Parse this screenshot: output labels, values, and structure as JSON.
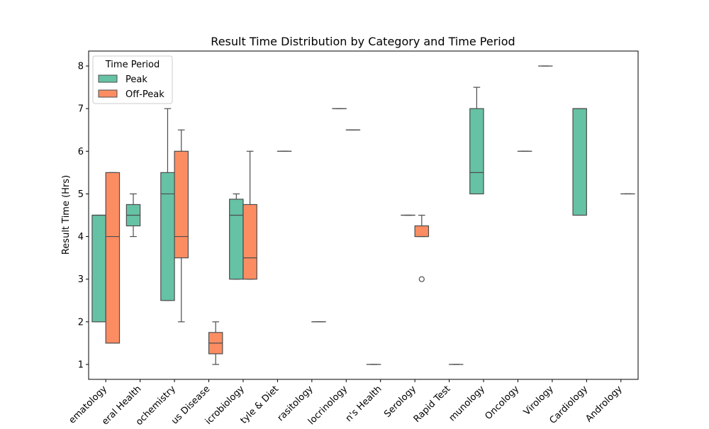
{
  "chart_data": {
    "type": "box",
    "title": "Result Time Distribution by Category and Time Period",
    "xlabel": "",
    "ylabel": "Result Time (Hrs)",
    "ylim": [
      0.65,
      8.35
    ],
    "yticks": [
      1,
      2,
      3,
      4,
      5,
      6,
      7,
      8
    ],
    "grid": false,
    "legend": {
      "title": "Time Period",
      "placement": "top-left"
    },
    "categories": [
      "Hematology",
      "General Health",
      "Biochemistry",
      "Infectious Disease",
      "Microbiology",
      "Lifestyle & Diet",
      "Parasitology",
      "Endocrinology",
      "Women's Health",
      "Serology",
      "Rapid Test",
      "Immunology",
      "Oncology",
      "Virology",
      "Cardiology",
      "Andrology"
    ],
    "category_labels_visible": [
      "ematology",
      "eral Health",
      "ochemistry",
      "us Disease",
      "icrobiology",
      "tyle & Diet",
      "rasitology",
      "locrinology",
      "n's Health",
      "Serology",
      "Rapid Test",
      "munology",
      "Oncology",
      "Virology",
      "Cardiology",
      "Andrology"
    ],
    "series": [
      {
        "name": "Peak",
        "color": "#66c2a5",
        "boxes": [
          {
            "category": "Hematology",
            "q1": 2.0,
            "median": 4.5,
            "q3": 4.5,
            "whisker_low": 2.0,
            "whisker_high": 4.5
          },
          {
            "category": "General Health",
            "q1": 4.25,
            "median": 4.5,
            "q3": 4.75,
            "whisker_low": 4.0,
            "whisker_high": 5.0
          },
          {
            "category": "Biochemistry",
            "q1": 2.5,
            "median": 5.0,
            "q3": 5.5,
            "whisker_low": 2.5,
            "whisker_high": 7.0
          },
          {
            "category": "Microbiology",
            "q1": 3.0,
            "median": 4.5,
            "q3": 4.875,
            "whisker_low": 3.0,
            "whisker_high": 5.0
          },
          {
            "category": "Endocrinology",
            "q1": 7.0,
            "median": 7.0,
            "q3": 7.0,
            "whisker_low": 7.0,
            "whisker_high": 7.0
          },
          {
            "category": "Women's Health",
            "q1": 1.0,
            "median": 1.0,
            "q3": 1.0,
            "whisker_low": 1.0,
            "whisker_high": 1.0
          },
          {
            "category": "Serology",
            "q1": 4.5,
            "median": 4.5,
            "q3": 4.5,
            "whisker_low": 4.5,
            "whisker_high": 4.5
          },
          {
            "category": "Immunology",
            "q1": 5.0,
            "median": 5.5,
            "q3": 7.0,
            "whisker_low": 5.0,
            "whisker_high": 7.5
          },
          {
            "category": "Virology",
            "q1": 8.0,
            "median": 8.0,
            "q3": 8.0,
            "whisker_low": 8.0,
            "whisker_high": 8.0
          },
          {
            "category": "Cardiology",
            "q1": 4.5,
            "median": 7.0,
            "q3": 7.0,
            "whisker_low": 4.5,
            "whisker_high": 7.0
          }
        ]
      },
      {
        "name": "Off-Peak",
        "color": "#fc8d62",
        "boxes": [
          {
            "category": "Hematology",
            "q1": 1.5,
            "median": 4.0,
            "q3": 5.5,
            "whisker_low": 1.5,
            "whisker_high": 5.5
          },
          {
            "category": "Biochemistry",
            "q1": 3.5,
            "median": 4.0,
            "q3": 6.0,
            "whisker_low": 2.0,
            "whisker_high": 6.5
          },
          {
            "category": "Infectious Disease",
            "q1": 1.25,
            "median": 1.5,
            "q3": 1.75,
            "whisker_low": 1.0,
            "whisker_high": 2.0
          },
          {
            "category": "Microbiology",
            "q1": 3.0,
            "median": 3.5,
            "q3": 4.75,
            "whisker_low": 3.0,
            "whisker_high": 6.0
          },
          {
            "category": "Lifestyle & Diet",
            "q1": 6.0,
            "median": 6.0,
            "q3": 6.0,
            "whisker_low": 6.0,
            "whisker_high": 6.0
          },
          {
            "category": "Parasitology",
            "q1": 2.0,
            "median": 2.0,
            "q3": 2.0,
            "whisker_low": 2.0,
            "whisker_high": 2.0
          },
          {
            "category": "Endocrinology",
            "q1": 6.5,
            "median": 6.5,
            "q3": 6.5,
            "whisker_low": 6.5,
            "whisker_high": 6.5
          },
          {
            "category": "Serology",
            "q1": 4.0,
            "median": 4.0,
            "q3": 4.25,
            "whisker_low": 4.0,
            "whisker_high": 4.5,
            "outliers": [
              3.0
            ]
          },
          {
            "category": "Rapid Test",
            "q1": 1.0,
            "median": 1.0,
            "q3": 1.0,
            "whisker_low": 1.0,
            "whisker_high": 1.0
          },
          {
            "category": "Oncology",
            "q1": 6.0,
            "median": 6.0,
            "q3": 6.0,
            "whisker_low": 6.0,
            "whisker_high": 6.0
          },
          {
            "category": "Andrology",
            "q1": 5.0,
            "median": 5.0,
            "q3": 5.0,
            "whisker_low": 5.0,
            "whisker_high": 5.0
          }
        ]
      }
    ]
  }
}
